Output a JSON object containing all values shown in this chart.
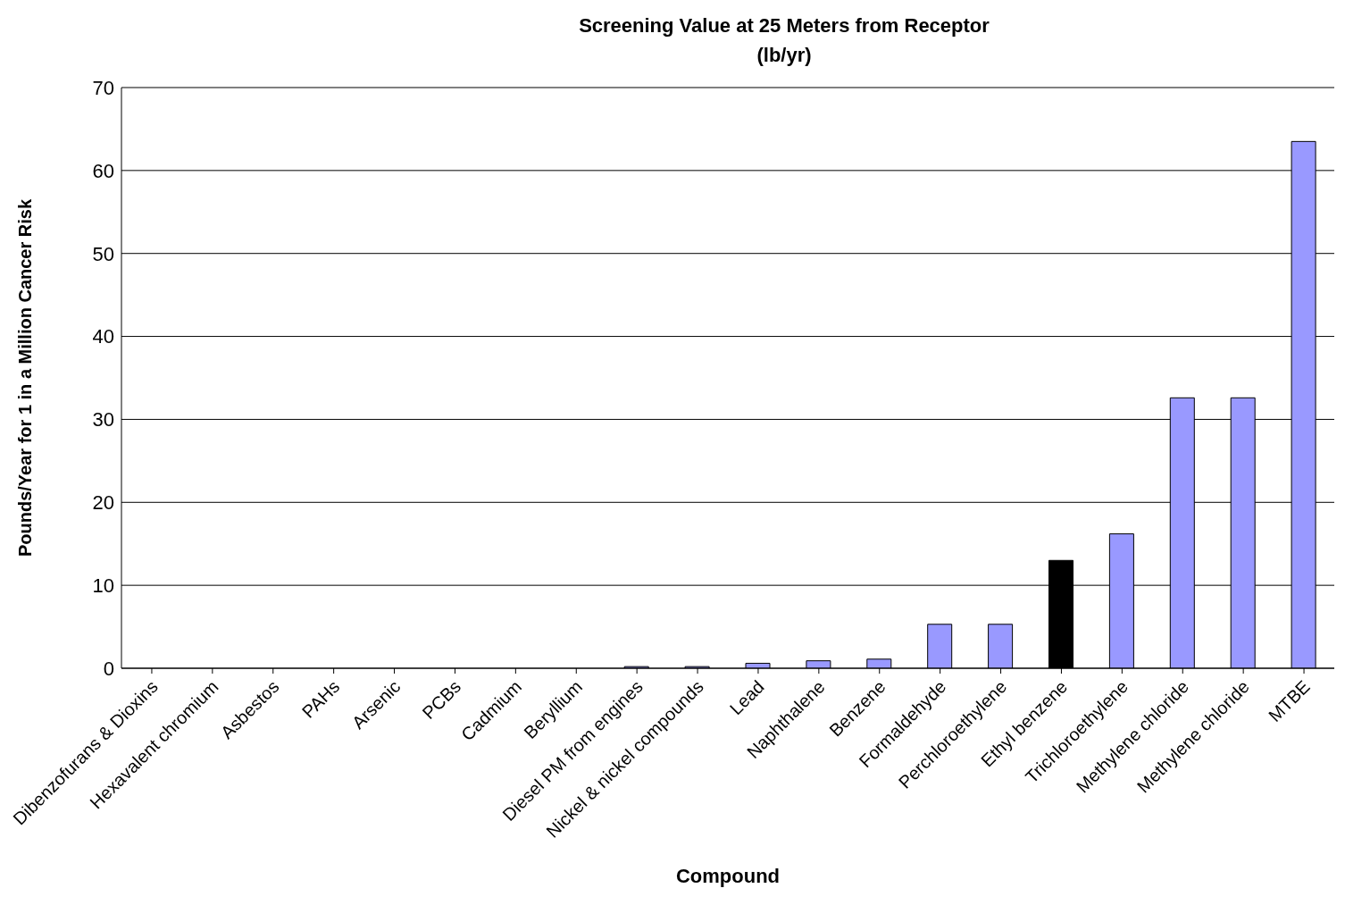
{
  "chart_data": {
    "type": "bar",
    "title": "Screening Value at 25 Meters from Receptor",
    "subtitle": "(lb/yr)",
    "xlabel": "Compound",
    "ylabel": "Pounds/Year for 1 in a Million Cancer Risk",
    "categories": [
      "Dibenzofurans & Dioxins",
      "Hexavalent chromium",
      "Asbestos",
      "PAHs",
      "Arsenic",
      "PCBs",
      "Cadmium",
      "Beryllium",
      "Diesel PM from engines",
      "Nickel & nickel compounds",
      "Lead",
      "Naphthalene",
      "Benzene",
      "Formaldehyde",
      "Perchloroethylene",
      "Ethyl benzene",
      "Trichloroethylene",
      "Methylene chloride",
      "Methylene chloride",
      "MTBE"
    ],
    "values": [
      0,
      0,
      0,
      0,
      0,
      0,
      0,
      0,
      0.2,
      0.2,
      0.6,
      0.9,
      1.1,
      5.3,
      5.3,
      13,
      16.2,
      32.6,
      32.6,
      63.5
    ],
    "colors": [
      "#9999ff",
      "#9999ff",
      "#9999ff",
      "#9999ff",
      "#9999ff",
      "#9999ff",
      "#9999ff",
      "#9999ff",
      "#9999ff",
      "#9999ff",
      "#9999ff",
      "#9999ff",
      "#9999ff",
      "#9999ff",
      "#9999ff",
      "#000000",
      "#9999ff",
      "#9999ff",
      "#9999ff",
      "#9999ff"
    ],
    "ylim": [
      0,
      70
    ],
    "yticks": [
      0,
      10,
      20,
      30,
      40,
      50,
      60,
      70
    ],
    "grid": "y"
  }
}
